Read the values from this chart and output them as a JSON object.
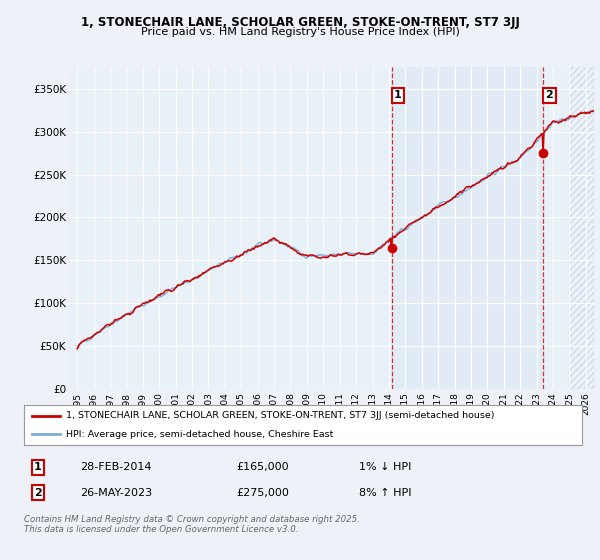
{
  "title_line1": "1, STONECHAIR LANE, SCHOLAR GREEN, STOKE-ON-TRENT, ST7 3JJ",
  "title_line2": "Price paid vs. HM Land Registry's House Price Index (HPI)",
  "bg_color": "#eef2f8",
  "plot_bg_color": "#e8f0f8",
  "plot_bg_highlight": "#dce8f4",
  "grid_color": "#ffffff",
  "red_line_color": "#cc0000",
  "blue_line_color": "#7aadd4",
  "marker1_date_x": 2014.16,
  "marker1_y": 165000,
  "marker2_date_x": 2023.4,
  "marker2_y": 275000,
  "ylim": [
    0,
    375000
  ],
  "xlim_start": 1994.5,
  "xlim_end": 2026.5,
  "yticks": [
    0,
    50000,
    100000,
    150000,
    200000,
    250000,
    300000,
    350000
  ],
  "ytick_labels": [
    "£0",
    "£50K",
    "£100K",
    "£150K",
    "£200K",
    "£250K",
    "£300K",
    "£350K"
  ],
  "xticks": [
    1995,
    1996,
    1997,
    1998,
    1999,
    2000,
    2001,
    2002,
    2003,
    2004,
    2005,
    2006,
    2007,
    2008,
    2009,
    2010,
    2011,
    2012,
    2013,
    2014,
    2015,
    2016,
    2017,
    2018,
    2019,
    2020,
    2021,
    2022,
    2023,
    2024,
    2025,
    2026
  ],
  "legend_red_label": "1, STONECHAIR LANE, SCHOLAR GREEN, STOKE-ON-TRENT, ST7 3JJ (semi-detached house)",
  "legend_blue_label": "HPI: Average price, semi-detached house, Cheshire East",
  "annotation1_label": "1",
  "annotation1_date": "28-FEB-2014",
  "annotation1_price": "£165,000",
  "annotation1_hpi": "1% ↓ HPI",
  "annotation2_label": "2",
  "annotation2_date": "26-MAY-2023",
  "annotation2_price": "£275,000",
  "annotation2_hpi": "8% ↑ HPI",
  "footer_text": "Contains HM Land Registry data © Crown copyright and database right 2025.\nThis data is licensed under the Open Government Licence v3.0.",
  "vline1_x": 2014.16,
  "vline2_x": 2023.4,
  "vline_color": "#cc0000",
  "future_start": 2025.0,
  "hpi_data_end": 2025.0
}
